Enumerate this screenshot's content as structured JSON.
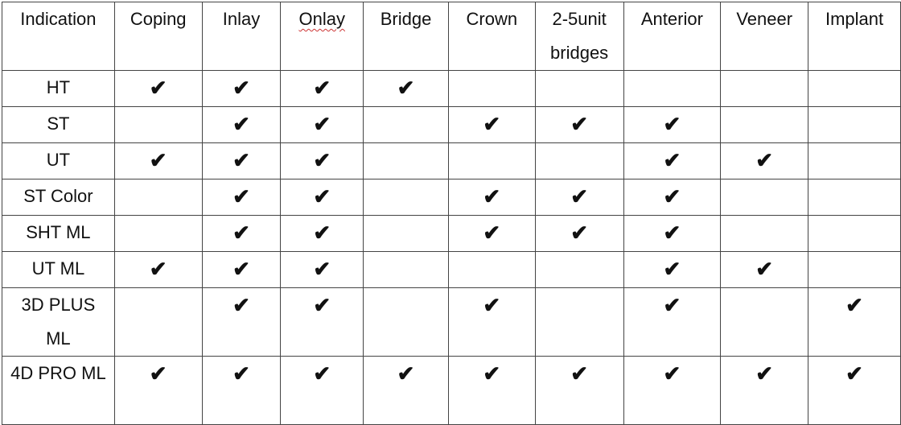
{
  "table": {
    "headers": [
      "Indication",
      "Coping",
      "Inlay",
      "Onlay",
      "Bridge",
      "Crown",
      "2-5unit bridges",
      "Anterior",
      "Veneer",
      "Implant"
    ],
    "check_symbol": "✔",
    "rows": [
      {
        "label": "HT",
        "checks": [
          true,
          true,
          true,
          true,
          false,
          false,
          false,
          false,
          false
        ]
      },
      {
        "label": "ST",
        "checks": [
          false,
          true,
          true,
          false,
          true,
          true,
          true,
          false,
          false
        ]
      },
      {
        "label": "UT",
        "checks": [
          true,
          true,
          true,
          false,
          false,
          false,
          true,
          true,
          false
        ]
      },
      {
        "label": "ST Color",
        "checks": [
          false,
          true,
          true,
          false,
          true,
          true,
          true,
          false,
          false
        ]
      },
      {
        "label": "SHT ML",
        "checks": [
          false,
          true,
          true,
          false,
          true,
          true,
          true,
          false,
          false
        ]
      },
      {
        "label": "UT ML",
        "checks": [
          true,
          true,
          true,
          false,
          false,
          false,
          true,
          true,
          false
        ]
      },
      {
        "label": "3D PLUS ML",
        "checks": [
          false,
          true,
          true,
          false,
          true,
          false,
          true,
          false,
          true
        ]
      },
      {
        "label": "4D PRO ML",
        "checks": [
          true,
          true,
          true,
          true,
          true,
          true,
          true,
          true,
          true
        ]
      }
    ]
  }
}
